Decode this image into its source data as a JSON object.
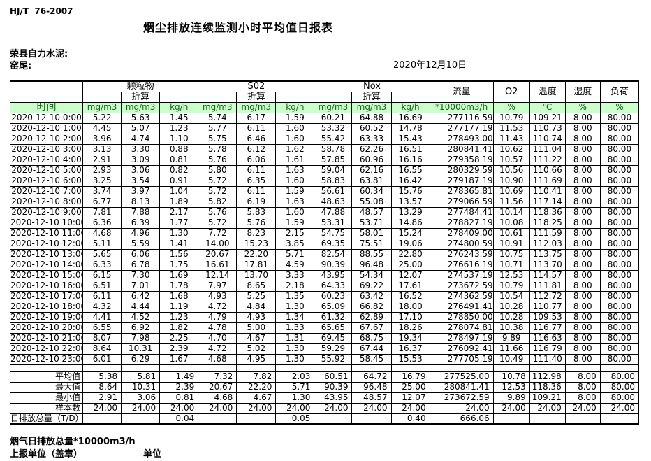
{
  "meta": {
    "standard": "HJ/T  76-2007",
    "title": "烟尘排放连续监测小时平均值日报表",
    "company": "荣县自力水泥:",
    "location": "窑尾:",
    "date": "2020年12月10日"
  },
  "table": {
    "header": {
      "time_label": "时间",
      "groups": [
        {
          "label": "颗粒物",
          "sub": "折算"
        },
        {
          "label": "S02",
          "sub": "折算"
        },
        {
          "label": "Nox",
          "sub": "折算"
        }
      ],
      "singles": [
        "流量",
        "O2",
        "温度",
        "湿度",
        "负荷"
      ],
      "units": [
        "mg/m3",
        "mg/m3",
        "kg/h",
        "mg/m3",
        "mg/m3",
        "kg/h",
        "mg/m3",
        "mg/m3",
        "kg/h",
        "*10000m3/h",
        "%",
        "℃",
        "%",
        "%"
      ]
    },
    "rows": [
      [
        "2020-12-10  0:00",
        "5.22",
        "5.63",
        "1.45",
        "5.74",
        "6.17",
        "1.59",
        "60.21",
        "64.88",
        "16.69",
        "277116.59",
        "10.79",
        "109.21",
        "8.00",
        "80.00"
      ],
      [
        "2020-12-10  1:00",
        "4.45",
        "5.07",
        "1.23",
        "5.77",
        "6.11",
        "1.60",
        "53.32",
        "60.52",
        "14.78",
        "277177.19",
        "11.53",
        "110.73",
        "8.00",
        "80.00"
      ],
      [
        "2020-12-10  2:00",
        "3.96",
        "4.74",
        "1.10",
        "5.75",
        "6.46",
        "1.60",
        "55.42",
        "63.33",
        "15.43",
        "278493.00",
        "11.43",
        "110.74",
        "8.00",
        "80.00"
      ],
      [
        "2020-12-10  3:00",
        "3.13",
        "3.30",
        "0.88",
        "5.78",
        "6.12",
        "1.62",
        "58.78",
        "62.26",
        "16.51",
        "280841.41",
        "10.62",
        "111.04",
        "8.00",
        "80.00"
      ],
      [
        "2020-12-10  4:00",
        "2.91",
        "3.09",
        "0.81",
        "5.76",
        "6.06",
        "1.61",
        "57.85",
        "60.96",
        "16.16",
        "279358.19",
        "10.57",
        "111.22",
        "8.00",
        "80.00"
      ],
      [
        "2020-12-10  5:00",
        "2.93",
        "3.06",
        "0.82",
        "5.80",
        "6.11",
        "1.63",
        "59.04",
        "62.16",
        "16.55",
        "280329.59",
        "10.56",
        "110.66",
        "8.00",
        "80.00"
      ],
      [
        "2020-12-10  6:00",
        "3.25",
        "3.54",
        "0.91",
        "5.72",
        "6.35",
        "1.60",
        "58.83",
        "63.81",
        "16.42",
        "279187.19",
        "10.90",
        "111.69",
        "8.00",
        "80.00"
      ],
      [
        "2020-12-10  7:00",
        "3.74",
        "3.97",
        "1.04",
        "5.72",
        "6.11",
        "1.59",
        "56.61",
        "60.34",
        "15.76",
        "278365.81",
        "10.69",
        "110.41",
        "8.00",
        "80.00"
      ],
      [
        "2020-12-10  8:00",
        "6.77",
        "8.13",
        "1.89",
        "5.82",
        "6.19",
        "1.63",
        "48.63",
        "55.08",
        "13.57",
        "279066.59",
        "11.56",
        "117.14",
        "8.00",
        "80.00"
      ],
      [
        "2020-12-10  9:00",
        "7.81",
        "7.88",
        "2.17",
        "5.76",
        "5.83",
        "1.60",
        "47.88",
        "48.57",
        "13.29",
        "277484.41",
        "10.14",
        "118.36",
        "8.00",
        "80.00"
      ],
      [
        "2020-12-10 10:00",
        "6.36",
        "6.39",
        "1.77",
        "5.72",
        "5.76",
        "1.59",
        "53.31",
        "53.71",
        "14.86",
        "278827.19",
        "10.08",
        "118.25",
        "8.00",
        "80.00"
      ],
      [
        "2020-12-10 11:00",
        "4.68",
        "4.96",
        "1.30",
        "7.72",
        "8.23",
        "2.15",
        "54.75",
        "58.01",
        "15.24",
        "278409.00",
        "10.61",
        "111.59",
        "8.00",
        "80.00"
      ],
      [
        "2020-12-10 12:00",
        "5.11",
        "5.59",
        "1.41",
        "14.00",
        "15.23",
        "3.85",
        "69.35",
        "75.51",
        "19.06",
        "274800.59",
        "10.91",
        "112.03",
        "8.00",
        "80.00"
      ],
      [
        "2020-12-10 13:00",
        "5.65",
        "6.06",
        "1.56",
        "20.67",
        "22.20",
        "5.71",
        "82.54",
        "88.55",
        "22.80",
        "276243.59",
        "10.75",
        "113.75",
        "8.00",
        "80.00"
      ],
      [
        "2020-12-10 14:00",
        "6.33",
        "6.78",
        "1.75",
        "16.61",
        "17.81",
        "4.59",
        "90.39",
        "96.48",
        "25.00",
        "276616.19",
        "10.71",
        "113.70",
        "8.00",
        "80.00"
      ],
      [
        "2020-12-10 15:00",
        "6.15",
        "7.30",
        "1.69",
        "12.14",
        "13.70",
        "3.33",
        "43.95",
        "54.34",
        "12.07",
        "274537.19",
        "12.53",
        "114.57",
        "8.00",
        "80.00"
      ],
      [
        "2020-12-10 16:00",
        "6.51",
        "7.01",
        "1.78",
        "7.97",
        "8.65",
        "2.18",
        "64.33",
        "69.22",
        "17.61",
        "273672.59",
        "10.79",
        "111.81",
        "8.00",
        "80.00"
      ],
      [
        "2020-12-10 17:00",
        "6.11",
        "6.42",
        "1.68",
        "4.93",
        "5.25",
        "1.35",
        "60.23",
        "63.42",
        "16.52",
        "274362.59",
        "10.54",
        "112.72",
        "8.00",
        "80.00"
      ],
      [
        "2020-12-10 18:00",
        "4.32",
        "4.44",
        "1.19",
        "4.72",
        "4.84",
        "1.30",
        "65.09",
        "66.82",
        "18.00",
        "276491.41",
        "10.28",
        "110.77",
        "8.00",
        "80.00"
      ],
      [
        "2020-12-10 19:00",
        "4.41",
        "4.52",
        "1.23",
        "4.79",
        "4.93",
        "1.34",
        "61.32",
        "62.89",
        "17.10",
        "278850.00",
        "10.28",
        "109.53",
        "8.00",
        "80.00"
      ],
      [
        "2020-12-10 20:00",
        "6.55",
        "6.92",
        "1.82",
        "4.78",
        "5.00",
        "1.33",
        "65.65",
        "67.67",
        "18.26",
        "278074.81",
        "10.38",
        "116.77",
        "8.00",
        "80.00"
      ],
      [
        "2020-12-10 21:00",
        "8.07",
        "7.98",
        "2.25",
        "4.70",
        "4.67",
        "1.31",
        "69.45",
        "68.75",
        "19.34",
        "278497.19",
        "9.89",
        "116.63",
        "8.00",
        "80.00"
      ],
      [
        "2020-12-10 22:00",
        "8.64",
        "10.31",
        "2.39",
        "4.72",
        "5.02",
        "1.30",
        "59.29",
        "67.44",
        "16.37",
        "276092.41",
        "11.66",
        "116.79",
        "8.00",
        "80.00"
      ],
      [
        "2020-12-10 23:00",
        "6.01",
        "6.29",
        "1.67",
        "4.68",
        "4.95",
        "1.30",
        "55.92",
        "58.45",
        "15.53",
        "277705.19",
        "10.49",
        "111.40",
        "8.00",
        "80.00"
      ]
    ],
    "summary": [
      {
        "label": "平均值",
        "values": [
          "5.38",
          "5.81",
          "1.49",
          "7.32",
          "7.82",
          "2.03",
          "60.51",
          "64.72",
          "16.79",
          "277525.00",
          "10.78",
          "112.98",
          "8.00",
          "80.00"
        ]
      },
      {
        "label": "最大值",
        "values": [
          "8.64",
          "10.31",
          "2.39",
          "20.67",
          "22.20",
          "5.71",
          "90.39",
          "96.48",
          "25.00",
          "280841.41",
          "12.53",
          "118.36",
          "8.00",
          "80.00"
        ]
      },
      {
        "label": "最小值",
        "values": [
          "2.91",
          "3.06",
          "0.81",
          "4.68",
          "4.67",
          "1.30",
          "43.95",
          "48.57",
          "12.07",
          "273672.59",
          "9.89",
          "109.21",
          "8.00",
          "80.00"
        ]
      },
      {
        "label": "样本数",
        "values": [
          "24.00",
          "24.00",
          "24.00",
          "24.00",
          "24.00",
          "24.00",
          "24.00",
          "24.00",
          "24.00",
          "24.00",
          "24.00",
          "24.00",
          "24.00",
          "24.00"
        ]
      }
    ],
    "total_row": {
      "label": "日排放总量（T/D）",
      "values": [
        "",
        "",
        "0.04",
        "",
        "",
        "0.05",
        "",
        "",
        "0.40",
        "666.06",
        "",
        "",
        "",
        ""
      ]
    }
  },
  "footer": {
    "flue_total": "烟气日排放总量*10000m3/h",
    "report_unit": "上报单位（盖章）",
    "unit": "单位"
  }
}
